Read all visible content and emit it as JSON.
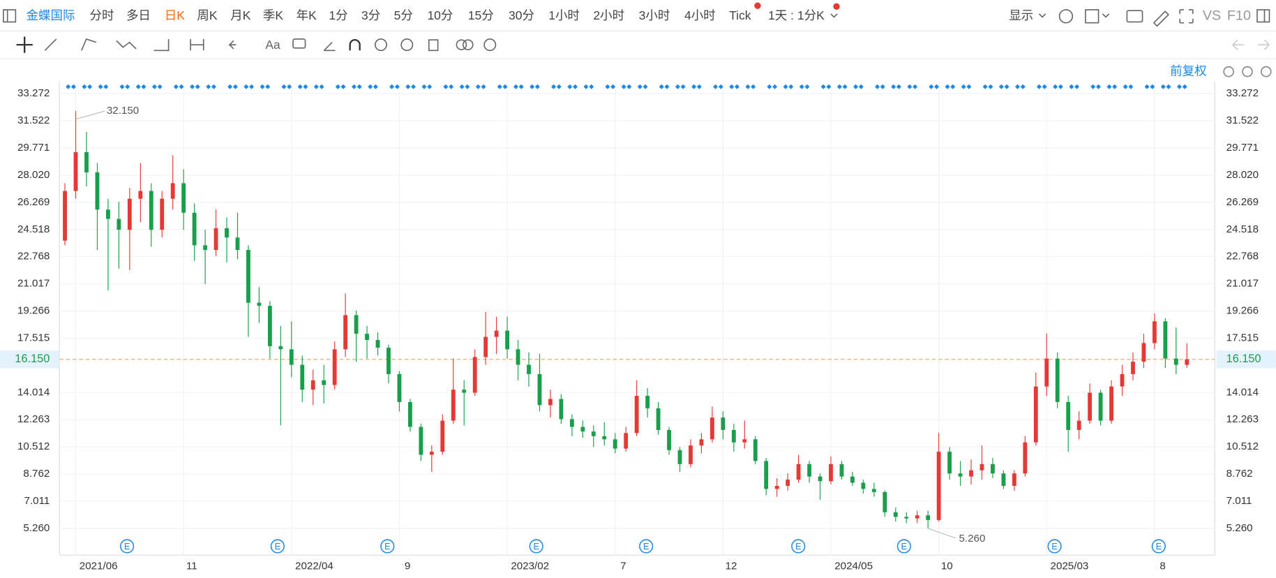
{
  "toolbar": {
    "symbol": "金蝶国际",
    "periods": [
      "分时",
      "多日",
      "日K",
      "周K",
      "月K",
      "季K",
      "年K",
      "1分",
      "3分",
      "5分",
      "10分",
      "15分",
      "30分",
      "1小时",
      "2小时",
      "3小时",
      "4小时",
      "Tick",
      "1天 : 1分K"
    ],
    "display": "显示",
    "compare": "VS",
    "f10": "F10",
    "text_tool": "Aa",
    "adjust": "前复权"
  },
  "chart_data": {
    "type": "candlestick",
    "categories": [
      null,
      "2021/06",
      null,
      null,
      null,
      null,
      null,
      null,
      null,
      null,
      null,
      "11",
      null,
      null,
      null,
      null,
      null,
      null,
      null,
      null,
      null,
      "2022/04",
      null,
      null,
      null,
      null,
      null,
      null,
      null,
      null,
      null,
      "9",
      null,
      null,
      null,
      null,
      null,
      null,
      null,
      null,
      null,
      "2023/02",
      null,
      null,
      null,
      null,
      null,
      null,
      null,
      null,
      null,
      "7",
      null,
      null,
      null,
      null,
      null,
      null,
      null,
      null,
      null,
      "12",
      null,
      null,
      null,
      null,
      null,
      null,
      null,
      null,
      null,
      "2024/05",
      null,
      null,
      null,
      null,
      null,
      null,
      null,
      null,
      null,
      "10",
      null,
      null,
      null,
      null,
      null,
      null,
      null,
      null,
      null,
      "2025/03",
      null,
      null,
      null,
      null,
      null,
      null,
      null,
      null,
      null,
      "8",
      null,
      null,
      null
    ],
    "open": [
      23.8,
      27,
      29.5,
      28.2,
      25.8,
      25.2,
      24.5,
      26.5,
      27,
      24.5,
      26.5,
      27.5,
      25.6,
      23.5,
      23.2,
      24.6,
      24,
      23.2,
      19.8,
      19.6,
      17,
      16.8,
      15.8,
      14.2,
      14.8,
      14.5,
      16.8,
      19,
      17.8,
      17.4,
      16.9,
      15.2,
      13.4,
      11.8,
      10,
      10.2,
      12.2,
      14.2,
      14,
      16.3,
      17.6,
      18,
      16.8,
      15.8,
      15.2,
      13.2,
      13.6,
      12.3,
      11.8,
      11.5,
      11.2,
      11,
      10.4,
      11.4,
      13.8,
      13,
      11.6,
      10.3,
      9.4,
      10.6,
      11,
      12.4,
      11.6,
      10.8,
      11,
      9.6,
      7.8,
      8,
      8.4,
      9.4,
      8.6,
      8.3,
      9.4,
      8.6,
      8.2,
      7.8,
      7.6,
      6.3,
      6,
      5.9,
      6.1,
      5.8,
      10.2,
      8.8,
      8.6,
      9,
      9.4,
      8.8,
      8,
      8.8,
      10.8,
      14.4,
      16.2,
      13.4,
      11.6,
      12.2,
      14,
      12.2,
      14.4,
      15.2,
      16,
      17.2,
      18.6,
      16.2,
      15.8
    ],
    "high": [
      27.5,
      32.15,
      30.8,
      28.8,
      26.5,
      26.3,
      27.2,
      28.8,
      27.5,
      27,
      29.3,
      28.4,
      26.2,
      24.5,
      25.8,
      25.3,
      25.6,
      23.5,
      20.8,
      19.9,
      18.3,
      18.6,
      16.4,
      15.5,
      15.8,
      17.3,
      20.4,
      19.3,
      18.3,
      17.9,
      17.1,
      15.4,
      13.6,
      12,
      10.6,
      12.6,
      16.2,
      14.8,
      16.8,
      19.2,
      18.9,
      18.9,
      17.4,
      16.6,
      16.5,
      14.2,
      13.9,
      12.6,
      12.2,
      11.9,
      12.1,
      11.4,
      11.8,
      14.8,
      14.3,
      13.4,
      11.8,
      10.5,
      11,
      11.4,
      13.1,
      12.8,
      12,
      12.2,
      11.2,
      9.8,
      8.5,
      8.8,
      10,
      9.6,
      8.8,
      9.9,
      9.6,
      8.9,
      8.4,
      8.2,
      7.7,
      6.6,
      6.3,
      6.4,
      6.4,
      11.4,
      10.5,
      9.6,
      9.7,
      10.6,
      9.8,
      9,
      9,
      11.2,
      15.3,
      17.8,
      16.6,
      13.8,
      12.8,
      14.6,
      14.2,
      14.8,
      15.8,
      16.6,
      17.8,
      19.1,
      18.8,
      18.2,
      17.2
    ],
    "low": [
      23.5,
      26.5,
      27.3,
      23.2,
      20.6,
      22,
      21.9,
      25,
      23.4,
      24,
      25.8,
      24.5,
      22.5,
      21,
      22.8,
      22.4,
      22.6,
      17.6,
      18.5,
      16.2,
      11.9,
      15,
      13.4,
      13.2,
      13.3,
      14.2,
      16.3,
      16,
      16.2,
      16.4,
      14.6,
      12.8,
      11.5,
      9.6,
      8.9,
      10,
      12,
      11.9,
      13.8,
      15.8,
      16.5,
      16.2,
      14.8,
      14.4,
      12.8,
      12.4,
      12,
      11.2,
      11.1,
      10.5,
      10.6,
      10.1,
      10.2,
      11.2,
      12.4,
      11.3,
      10,
      8.9,
      9.2,
      10.1,
      10.8,
      11,
      10.2,
      10.4,
      9.4,
      7.4,
      7.3,
      7.7,
      8.2,
      8.2,
      7.1,
      8.1,
      8.4,
      8,
      7.5,
      7.3,
      6,
      5.7,
      5.6,
      5.6,
      5.26,
      5.7,
      8.4,
      8,
      8.1,
      8.4,
      8.5,
      7.8,
      7.7,
      8.6,
      10.6,
      13.8,
      13,
      10.2,
      11,
      12,
      11.9,
      12,
      13.8,
      14.8,
      15.6,
      16.8,
      15.6,
      15.2,
      15.6
    ],
    "close": [
      27,
      29.5,
      28.2,
      25.8,
      25.2,
      24.5,
      26.5,
      27,
      24.5,
      26.5,
      27.5,
      25.6,
      23.5,
      23.2,
      24.6,
      24,
      23.2,
      19.8,
      19.6,
      17,
      16.8,
      15.8,
      14.2,
      14.8,
      14.5,
      16.8,
      19,
      17.8,
      17.4,
      16.9,
      15.2,
      13.4,
      11.8,
      10,
      10.2,
      12.2,
      14.2,
      14,
      16.3,
      17.6,
      18,
      16.8,
      15.8,
      15.2,
      13.2,
      13.6,
      12.3,
      11.8,
      11.5,
      11.2,
      11,
      10.4,
      11.4,
      13.8,
      13,
      11.6,
      10.3,
      9.4,
      10.6,
      11,
      12.4,
      11.6,
      10.8,
      11,
      9.6,
      7.8,
      8,
      8.4,
      9.4,
      8.6,
      8.3,
      9.4,
      8.6,
      8.2,
      7.8,
      7.6,
      6.3,
      6,
      5.9,
      6.1,
      5.8,
      10.2,
      8.8,
      8.6,
      9,
      9.4,
      8.8,
      8,
      8.8,
      10.8,
      14.4,
      16.2,
      13.4,
      11.6,
      12.2,
      14,
      12.2,
      14.4,
      15.2,
      16,
      17.2,
      18.6,
      16.2,
      15.8,
      16.15
    ],
    "up_color": "#e53935",
    "down_color": "#1b9e4b",
    "ylim": [
      3.53,
      34.06
    ],
    "yticks": [
      {
        "value": 5.26,
        "label": "5.260"
      },
      7.011,
      8.762,
      10.512,
      12.263,
      14.014,
      17.515,
      19.266,
      21.017,
      22.768,
      24.518,
      26.269,
      {
        "value": 28.02,
        "label": "28.020"
      },
      29.771,
      31.522,
      33.272
    ],
    "grid": true,
    "max_annotation": {
      "value": 32.15,
      "label": "32.150"
    },
    "min_annotation": {
      "value": 5.26,
      "label": "5.260"
    },
    "last_price": {
      "value": 16.15,
      "label": "16.150",
      "color": "#f4a460"
    },
    "event_marker": "E"
  }
}
